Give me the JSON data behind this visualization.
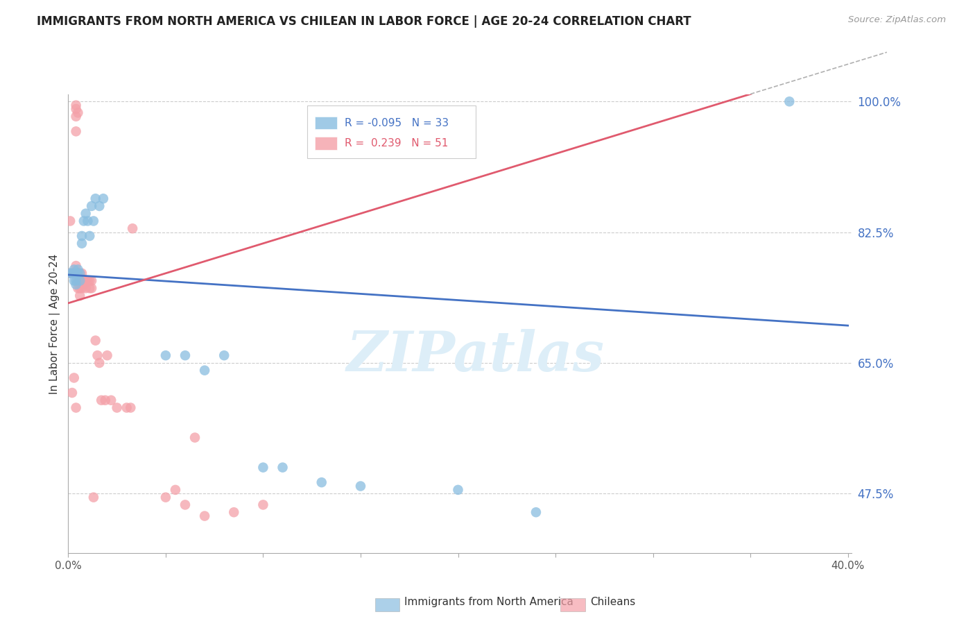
{
  "title": "IMMIGRANTS FROM NORTH AMERICA VS CHILEAN IN LABOR FORCE | AGE 20-24 CORRELATION CHART",
  "source_text": "Source: ZipAtlas.com",
  "ylabel": "In Labor Force | Age 20-24",
  "xmin": 0.0,
  "xmax": 0.4,
  "ymin": 0.4,
  "ymax": 1.0,
  "grid_color": "#cccccc",
  "blue_color": "#89bde0",
  "pink_color": "#f4a0a8",
  "blue_line_color": "#4472c4",
  "pink_line_color": "#e05a6e",
  "blue_R": -0.095,
  "blue_N": 33,
  "pink_R": 0.239,
  "pink_N": 51,
  "blue_scatter_x": [
    0.001,
    0.002,
    0.003,
    0.003,
    0.003,
    0.004,
    0.004,
    0.005,
    0.005,
    0.006,
    0.006,
    0.007,
    0.007,
    0.008,
    0.009,
    0.01,
    0.011,
    0.012,
    0.013,
    0.014,
    0.016,
    0.018,
    0.05,
    0.06,
    0.07,
    0.08,
    0.1,
    0.11,
    0.13,
    0.15,
    0.2,
    0.24,
    0.37
  ],
  "blue_scatter_y": [
    0.77,
    0.77,
    0.775,
    0.77,
    0.76,
    0.76,
    0.755,
    0.775,
    0.77,
    0.77,
    0.76,
    0.82,
    0.81,
    0.84,
    0.85,
    0.84,
    0.82,
    0.86,
    0.84,
    0.87,
    0.86,
    0.87,
    0.66,
    0.66,
    0.64,
    0.66,
    0.51,
    0.51,
    0.49,
    0.485,
    0.48,
    0.45,
    1.0
  ],
  "pink_scatter_x": [
    0.001,
    0.001,
    0.002,
    0.002,
    0.003,
    0.003,
    0.004,
    0.004,
    0.004,
    0.005,
    0.005,
    0.005,
    0.005,
    0.006,
    0.006,
    0.006,
    0.006,
    0.007,
    0.007,
    0.007,
    0.008,
    0.008,
    0.009,
    0.009,
    0.01,
    0.011,
    0.011,
    0.012,
    0.012,
    0.014,
    0.015,
    0.016,
    0.017,
    0.019,
    0.02,
    0.022,
    0.025,
    0.03,
    0.032,
    0.033,
    0.05,
    0.055,
    0.06,
    0.065,
    0.07,
    0.085,
    0.1,
    0.004,
    0.004,
    0.004,
    0.013
  ],
  "pink_scatter_y": [
    0.77,
    0.84,
    0.77,
    0.61,
    0.77,
    0.63,
    0.99,
    0.995,
    0.98,
    0.985,
    0.77,
    0.76,
    0.75,
    0.77,
    0.76,
    0.75,
    0.74,
    0.77,
    0.76,
    0.75,
    0.76,
    0.755,
    0.76,
    0.75,
    0.76,
    0.76,
    0.75,
    0.76,
    0.75,
    0.68,
    0.66,
    0.65,
    0.6,
    0.6,
    0.66,
    0.6,
    0.59,
    0.59,
    0.59,
    0.83,
    0.47,
    0.48,
    0.46,
    0.55,
    0.445,
    0.45,
    0.46,
    0.96,
    0.78,
    0.59,
    0.47
  ],
  "watermark_text": "ZIPatlas",
  "watermark_color": "#ddeef8",
  "legend_label_blue": "Immigrants from North America",
  "legend_label_pink": "Chileans",
  "ytick_positions": [
    0.475,
    0.65,
    0.825,
    1.0
  ],
  "ytick_labels": [
    "47.5%",
    "65.0%",
    "82.5%",
    "100.0%"
  ]
}
